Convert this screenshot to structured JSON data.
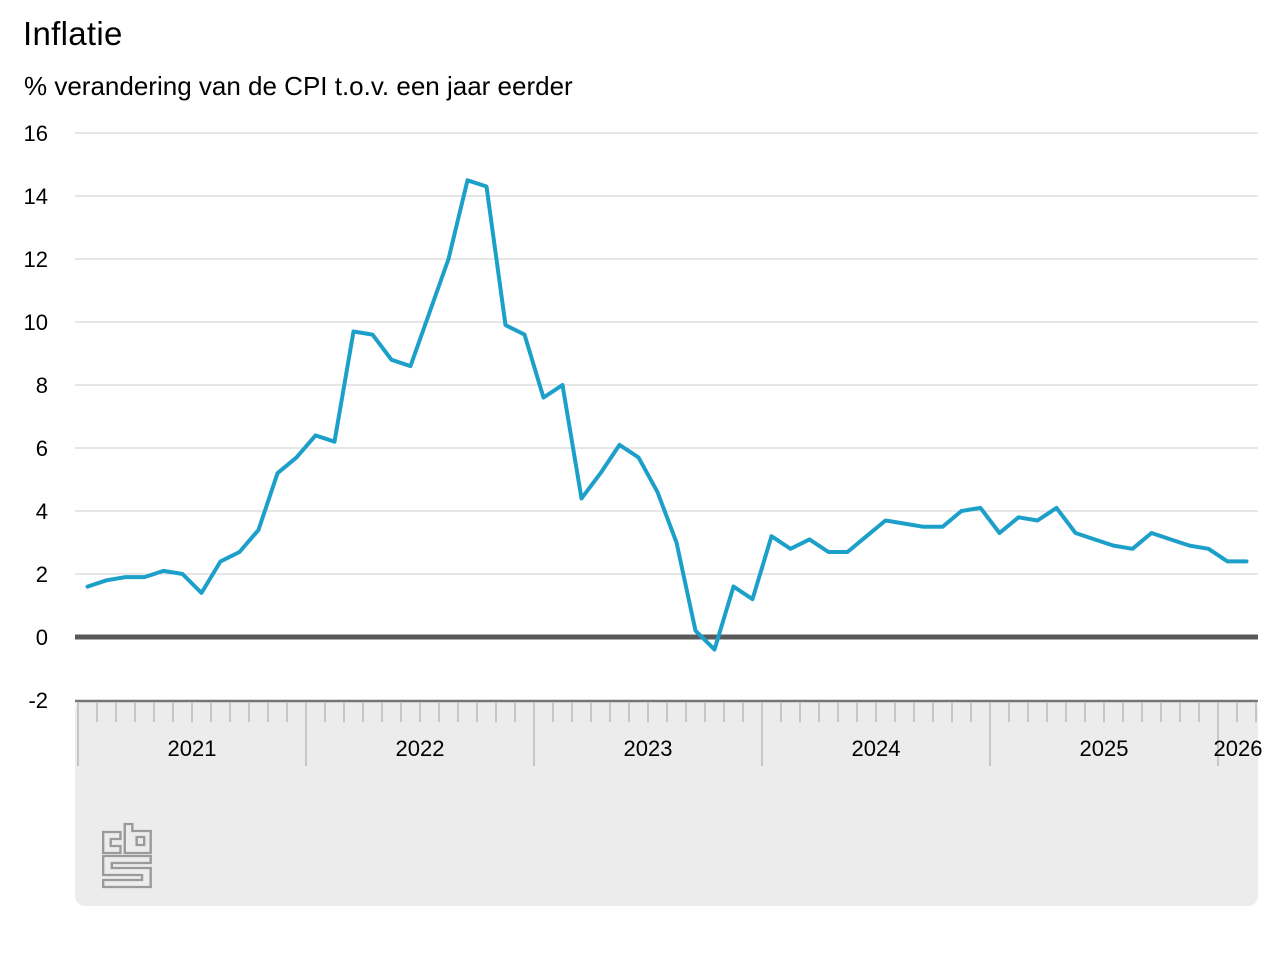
{
  "chart_data": {
    "type": "line",
    "title": "Inflatie",
    "subtitle": "% verandering van de CPI t.o.v. een jaar eerder",
    "series_name": "Inflatie (CPI), % verandering t.o.v. een jaar eerder",
    "x_start": "2021-01",
    "x_end": "2026-02",
    "years": [
      "2021",
      "2022",
      "2023",
      "2024",
      "2025",
      "2026"
    ],
    "values_by_year": {
      "2021": [
        1.6,
        1.8,
        1.9,
        1.9,
        2.1,
        2.0,
        1.4,
        2.4,
        2.7,
        3.4,
        5.2,
        5.7
      ],
      "2022": [
        6.4,
        6.2,
        9.7,
        9.6,
        8.8,
        8.6,
        10.3,
        12.0,
        14.5,
        14.3,
        9.9,
        9.6
      ],
      "2023": [
        7.6,
        8.0,
        4.4,
        5.2,
        6.1,
        5.7,
        4.6,
        3.0,
        0.2,
        -0.4,
        1.6,
        1.2
      ],
      "2024": [
        3.2,
        2.8,
        3.1,
        2.7,
        2.7,
        3.2,
        3.7,
        3.6,
        3.5,
        3.5,
        4.0,
        4.1
      ],
      "2025": [
        3.3,
        3.8,
        3.7,
        4.1,
        3.3,
        3.1,
        2.9,
        2.8,
        3.3,
        3.1,
        2.9,
        2.8
      ],
      "2026": [
        2.4,
        2.4
      ]
    },
    "yticks": [
      16,
      14,
      12,
      10,
      8,
      6,
      4,
      2,
      0,
      -2
    ],
    "ylim": [
      -2,
      16
    ],
    "grid": "horizontal",
    "legend": "none",
    "logo_name": "cbs-logo",
    "colors": {
      "line": "#1CA0C9",
      "gridline": "#cccccc",
      "zero_line": "#58595b",
      "axis_band": "#ececec",
      "axis_band_border": "#777777",
      "tick": "#c6c6c6",
      "text": "#000000",
      "logo": "#9a9a9a"
    }
  }
}
